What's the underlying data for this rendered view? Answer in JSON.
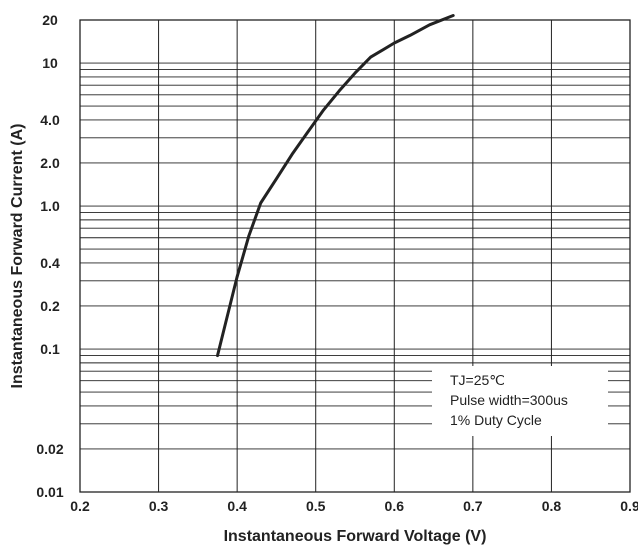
{
  "chart_data": {
    "type": "line",
    "title": "",
    "xlabel": "Instantaneous Forward Voltage (V)",
    "ylabel": "Instantaneous Forward Current (A)",
    "xlim": [
      0.2,
      0.9
    ],
    "ylim": [
      0.01,
      20
    ],
    "y_scale": "log",
    "grid": true,
    "x_ticks": [
      "0.2",
      "0.3",
      "0.4",
      "0.5",
      "0.6",
      "0.7",
      "0.8",
      "0.9"
    ],
    "y_ticks": [
      {
        "value": 20,
        "label": "20"
      },
      {
        "value": 10,
        "label": "10"
      },
      {
        "value": 4,
        "label": "4.0"
      },
      {
        "value": 2,
        "label": "2.0"
      },
      {
        "value": 1,
        "label": "1.0"
      },
      {
        "value": 0.4,
        "label": "0.4"
      },
      {
        "value": 0.2,
        "label": "0.2"
      },
      {
        "value": 0.1,
        "label": "0.1"
      },
      {
        "value": 0.02,
        "label": "0.02"
      },
      {
        "value": 0.01,
        "label": "0.01"
      }
    ],
    "series": [
      {
        "name": "",
        "color": "#222222",
        "x": [
          0.375,
          0.385,
          0.4,
          0.415,
          0.43,
          0.45,
          0.47,
          0.49,
          0.51,
          0.53,
          0.55,
          0.57,
          0.6,
          0.62,
          0.645,
          0.675
        ],
        "y": [
          0.09,
          0.15,
          0.32,
          0.62,
          1.05,
          1.55,
          2.3,
          3.3,
          4.7,
          6.4,
          8.5,
          11.0,
          13.8,
          15.6,
          18.5,
          21.5
        ]
      }
    ],
    "annotation": {
      "lines": [
        "TJ=25℃",
        "Pulse width=300us",
        "1% Duty Cycle"
      ],
      "placement": "bottom-right"
    }
  }
}
